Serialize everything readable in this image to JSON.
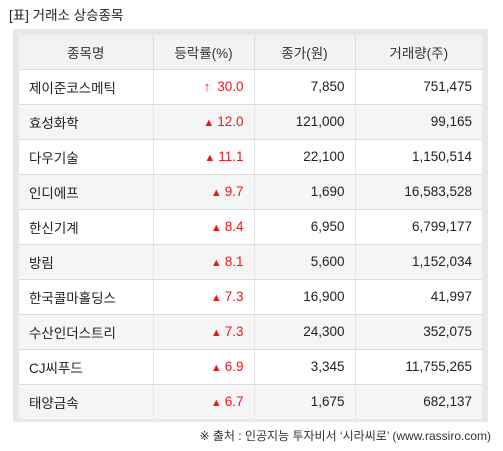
{
  "title": "[표] 거래소 상승종목",
  "columns": [
    "종목명",
    "등락률(%)",
    "종가(원)",
    "거래량(주)"
  ],
  "rows": [
    {
      "name": "제이준코스메틱",
      "symbol": "↑",
      "rate": "30.0",
      "price": "7,850",
      "volume": "751,475"
    },
    {
      "name": "효성화학",
      "symbol": "▲",
      "rate": "12.0",
      "price": "121,000",
      "volume": "99,165"
    },
    {
      "name": "다우기술",
      "symbol": "▲",
      "rate": "11.1",
      "price": "22,100",
      "volume": "1,150,514"
    },
    {
      "name": "인디에프",
      "symbol": "▲",
      "rate": "9.7",
      "price": "1,690",
      "volume": "16,583,528"
    },
    {
      "name": "한신기계",
      "symbol": "▲",
      "rate": "8.4",
      "price": "6,950",
      "volume": "6,799,177"
    },
    {
      "name": "방림",
      "symbol": "▲",
      "rate": "8.1",
      "price": "5,600",
      "volume": "1,152,034"
    },
    {
      "name": "한국콜마홀딩스",
      "symbol": "▲",
      "rate": "7.3",
      "price": "16,900",
      "volume": "41,997"
    },
    {
      "name": "수산인더스트리",
      "symbol": "▲",
      "rate": "7.3",
      "price": "24,300",
      "volume": "352,075"
    },
    {
      "name": "CJ씨푸드",
      "symbol": "▲",
      "rate": "6.9",
      "price": "3,345",
      "volume": "11,755,265"
    },
    {
      "name": "태양금속",
      "symbol": "▲",
      "rate": "6.7",
      "price": "1,675",
      "volume": "682,137"
    }
  ],
  "source": "※ 출처 : 인공지능 투자비서 ‘시라씨로’ (www.rassiro.com)",
  "colors": {
    "up": "#e8191c",
    "header_bg": "#f2f2f2",
    "frame": "#e8e8e8"
  }
}
